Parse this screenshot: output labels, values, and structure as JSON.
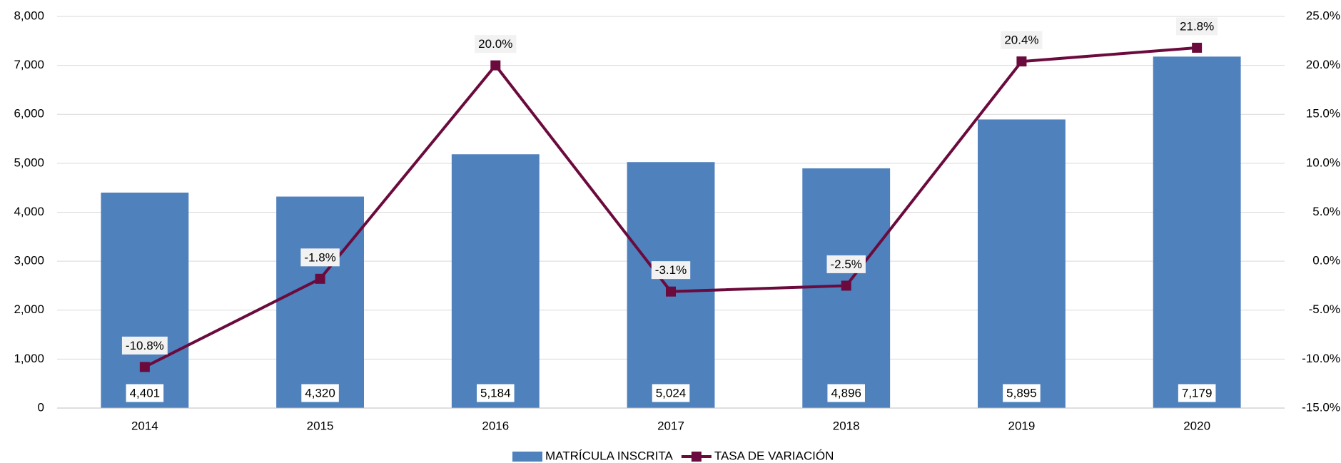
{
  "chart_data": {
    "type": "bar_line",
    "categories": [
      "2014",
      "2015",
      "2016",
      "2017",
      "2018",
      "2019",
      "2020"
    ],
    "series": [
      {
        "name": "MATRÍCULA INSCRITA",
        "type": "bar",
        "color": "#4f81bd",
        "values": [
          4401,
          4320,
          5184,
          5024,
          4896,
          5895,
          7179
        ],
        "value_labels": [
          "4,401",
          "4,320",
          "5,184",
          "5,024",
          "4,896",
          "5,895",
          "7,179"
        ]
      },
      {
        "name": "TASA DE VARIACIÓN",
        "type": "line",
        "axis": "y2",
        "color": "#6b0a3c",
        "values": [
          -10.8,
          -1.8,
          20.0,
          -3.1,
          -2.5,
          20.4,
          21.8
        ],
        "value_labels": [
          "-10.8%",
          "-1.8%",
          "20.0%",
          "-3.1%",
          "-2.5%",
          "20.4%",
          "21.8%"
        ]
      }
    ],
    "ylim": [
      0,
      8000
    ],
    "yticks": [
      0,
      {
        "value": 1000,
        "label": "1,000"
      },
      {
        "value": 2000,
        "label": "2,000"
      },
      {
        "value": 3000,
        "label": "3,000"
      },
      {
        "value": 4000,
        "label": "4,000"
      },
      {
        "value": 5000,
        "label": "5,000"
      },
      {
        "value": 6000,
        "label": "6,000"
      },
      {
        "value": 7000,
        "label": "7,000"
      },
      {
        "value": 8000,
        "label": "8,000"
      }
    ],
    "y2lim": [
      -15,
      25
    ],
    "y2ticks": [
      {
        "value": -15,
        "label": "-15.0%"
      },
      {
        "value": -10,
        "label": "-10.0%"
      },
      {
        "value": -5,
        "label": "-5.0%"
      },
      {
        "value": 0,
        "label": "0.0%"
      },
      {
        "value": 5,
        "label": "5.0%"
      },
      {
        "value": 10,
        "label": "10.0%"
      },
      {
        "value": 15,
        "label": "15.0%"
      },
      {
        "value": 20,
        "label": "20.0%"
      },
      {
        "value": 25,
        "label": "25.0%"
      }
    ],
    "grid": true,
    "legend": "bottom"
  }
}
